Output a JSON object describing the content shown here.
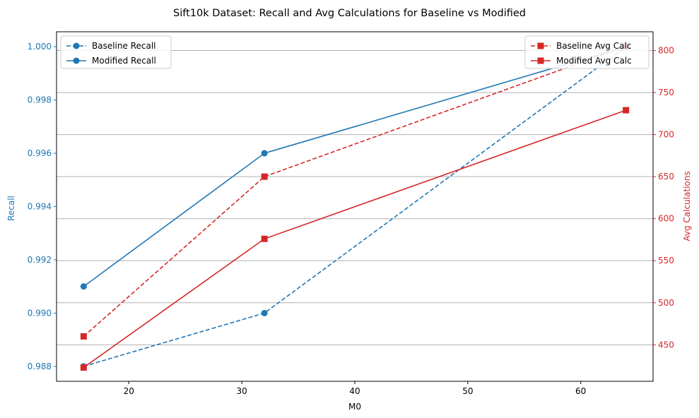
{
  "chart_data": {
    "type": "line",
    "title": "Sift10k Dataset: Recall and Avg Calculations for Baseline vs Modified",
    "xlabel": "M0",
    "ylabel_left": "Recall",
    "ylabel_right": "Avg Calculations",
    "x": [
      16,
      32,
      64
    ],
    "xlim": [
      13.6,
      66.4
    ],
    "xticks": [
      20,
      30,
      40,
      50,
      60
    ],
    "ylim_left": [
      0.98744,
      1.00056
    ],
    "yticks_left": [
      "0.988",
      "0.990",
      "0.992",
      "0.994",
      "0.996",
      "0.998",
      "1.000"
    ],
    "ylim_right": [
      406.6,
      822.3
    ],
    "yticks_right": [
      450,
      500,
      550,
      600,
      650,
      700,
      750,
      800
    ],
    "grid": "horizontal grid lines on right axis",
    "colors": {
      "recall": "#1f77b4",
      "calc": "#d62728",
      "grid": "#b0b0b0"
    },
    "series_left": [
      {
        "name": "Baseline Recall",
        "style": "dashed",
        "marker": "circle",
        "values": [
          0.988,
          0.99,
          1.0
        ]
      },
      {
        "name": "Modified Recall",
        "style": "solid",
        "marker": "circle",
        "values": [
          0.991,
          0.996,
          1.0
        ]
      }
    ],
    "series_right": [
      {
        "name": "Baseline Avg Calc",
        "style": "dashed",
        "marker": "square",
        "values": [
          460,
          650,
          805
        ]
      },
      {
        "name": "Modified Avg Calc",
        "style": "solid",
        "marker": "square",
        "values": [
          423,
          576,
          729
        ]
      }
    ],
    "legend_left_placement": "top-left",
    "legend_right_placement": "top-right"
  }
}
